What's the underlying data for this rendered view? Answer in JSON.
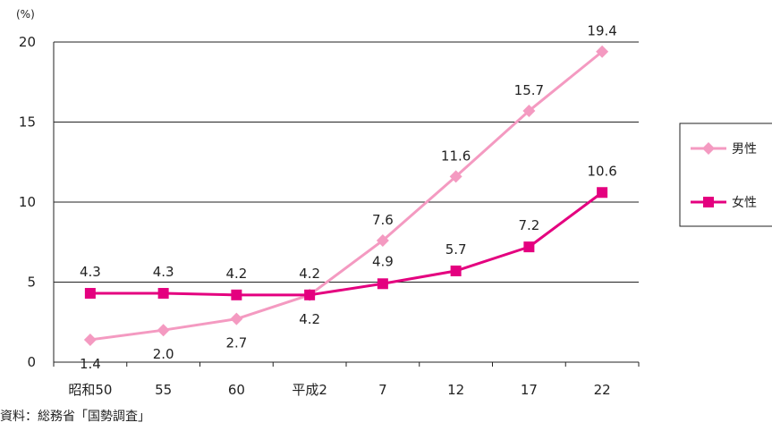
{
  "chart_data": {
    "type": "line",
    "unit_label": "(%)",
    "categories": [
      "昭和50",
      "55",
      "60",
      "平成2",
      "7",
      "12",
      "17",
      "22"
    ],
    "series": [
      {
        "name": "男性",
        "values": [
          1.4,
          2.0,
          2.7,
          4.2,
          7.6,
          11.6,
          15.7,
          19.4
        ],
        "labels": [
          "1.4",
          "2.0",
          "2.7",
          "4.2",
          "7.6",
          "11.6",
          "15.7",
          "19.4"
        ],
        "color": "#f49ac1",
        "marker": "diamond"
      },
      {
        "name": "女性",
        "values": [
          4.3,
          4.3,
          4.2,
          4.2,
          4.9,
          5.7,
          7.2,
          10.6
        ],
        "labels": [
          "4.3",
          "4.3",
          "4.2",
          "4.2",
          "4.9",
          "5.7",
          "7.2",
          "10.6"
        ],
        "color": "#e4007f",
        "marker": "square"
      }
    ],
    "yticks": [
      "0",
      "5",
      "10",
      "15",
      "20"
    ],
    "ylim": [
      0,
      20
    ],
    "grid": true,
    "legend_position": "right"
  },
  "source_note": "資料：総務省「国勢調査」"
}
